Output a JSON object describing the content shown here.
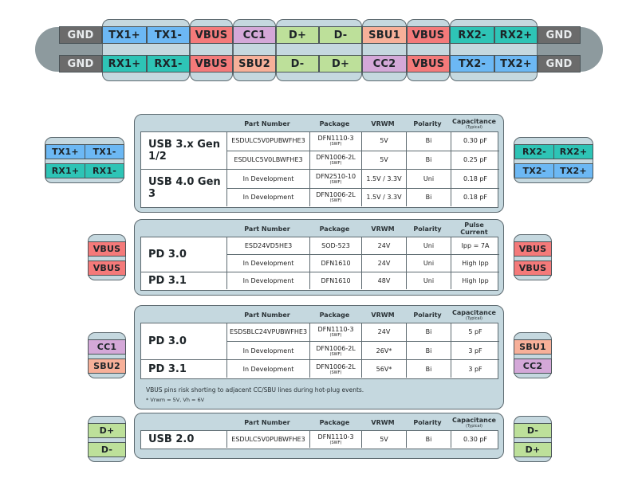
{
  "colors": {
    "gnd": "#6b6b6b",
    "tx": "#6cb8f4",
    "rx": "#2ec4b6",
    "vbus": "#f47a7a",
    "cc": "#d4a8d8",
    "sbu": "#f7b099",
    "d": "#bde09a",
    "group_bg": "#c5d8df",
    "cap": "#8d9a9e"
  },
  "connector": {
    "top_row": [
      "GND",
      "TX1+",
      "TX1-",
      "VBUS",
      "CC1",
      "D+",
      "D-",
      "SBU1",
      "VBUS",
      "RX2-",
      "RX2+",
      "GND"
    ],
    "bottom_row": [
      "GND",
      "RX1+",
      "RX1-",
      "VBUS",
      "SBU2",
      "D-",
      "D+",
      "CC2",
      "VBUS",
      "TX2-",
      "TX2+",
      "GND"
    ]
  },
  "side_badges": {
    "superspeed_left": {
      "top": [
        "TX1+",
        "TX1-"
      ],
      "bottom": [
        "RX1+",
        "RX1-"
      ]
    },
    "superspeed_right": {
      "top": [
        "RX2-",
        "RX2+"
      ],
      "bottom": [
        "TX2-",
        "TX2+"
      ]
    },
    "vbus_left": [
      "VBUS",
      "VBUS"
    ],
    "vbus_right": [
      "VBUS",
      "VBUS"
    ],
    "cc_left": [
      "CC1",
      "SBU2"
    ],
    "cc_right": [
      "SBU1",
      "CC2"
    ],
    "d_left": [
      "D+",
      "D-"
    ],
    "d_right": [
      "D-",
      "D+"
    ]
  },
  "tables": {
    "superspeed": {
      "headers": {
        "part": "Part Number",
        "package": "Package",
        "vrwm": "VRWM",
        "polarity": "Polarity",
        "last": "Capacitance",
        "last_sub": "(Typical)"
      },
      "groups": [
        {
          "label": "USB 3.x Gen 1/2",
          "rows": [
            {
              "part": "ESDULC5V0PUBWFHE3",
              "package": "DFN1110-3",
              "package_sub": "(SWF)",
              "vrwm": "5V",
              "polarity": "Bi",
              "value": "0.30 pF"
            },
            {
              "part": "ESDULC5V0LBWFHE3",
              "package": "DFN1006-2L",
              "package_sub": "(SWF)",
              "vrwm": "5V",
              "polarity": "Bi",
              "value": "0.25 pF"
            }
          ]
        },
        {
          "label": "USB 4.0 Gen 3",
          "rows": [
            {
              "part": "In Development",
              "package": "DFN2510-10",
              "package_sub": "(SWF)",
              "vrwm": "1.5V / 3.3V",
              "polarity": "Uni",
              "value": "0.18 pF"
            },
            {
              "part": "In Development",
              "package": "DFN1006-2L",
              "package_sub": "(SWF)",
              "vrwm": "1.5V / 3.3V",
              "polarity": "Bi",
              "value": "0.18 pF"
            }
          ]
        }
      ]
    },
    "vbus": {
      "headers": {
        "part": "Part Number",
        "package": "Package",
        "vrwm": "VRWM",
        "polarity": "Polarity",
        "last": "Pulse Current"
      },
      "groups": [
        {
          "label": "PD 3.0",
          "rows": [
            {
              "part": "ESD24VD5HE3",
              "package": "SOD-523",
              "vrwm": "24V",
              "polarity": "Uni",
              "value": "Ipp = 7A"
            },
            {
              "part": "In Development",
              "package": "DFN1610",
              "vrwm": "24V",
              "polarity": "Uni",
              "value": "High Ipp"
            }
          ]
        },
        {
          "label": "PD 3.1",
          "rows": [
            {
              "part": "In Development",
              "package": "DFN1610",
              "vrwm": "48V",
              "polarity": "Uni",
              "value": "High Ipp"
            }
          ]
        }
      ]
    },
    "cc_sbu": {
      "headers": {
        "part": "Part Number",
        "package": "Package",
        "vrwm": "VRWM",
        "polarity": "Polarity",
        "last": "Capacitance",
        "last_sub": "(Typical)"
      },
      "groups": [
        {
          "label": "PD 3.0",
          "rows": [
            {
              "part": "ESDSBLC24VPUBWFHE3",
              "package": "DFN1110-3",
              "package_sub": "(SWF)",
              "vrwm": "24V",
              "polarity": "Bi",
              "value": "5 pF"
            },
            {
              "part": "In Development",
              "package": "DFN1006-2L",
              "package_sub": "(SWF)",
              "vrwm": "26V*",
              "polarity": "Bi",
              "value": "3 pF"
            }
          ]
        },
        {
          "label": "PD 3.1",
          "rows": [
            {
              "part": "In Development",
              "package": "DFN1006-2L",
              "package_sub": "(SWF)",
              "vrwm": "56V*",
              "polarity": "Bi",
              "value": "3 pF"
            }
          ]
        }
      ],
      "note": "VBUS pins risk shorting to adjacent CC/SBU lines during hot-plug events.",
      "footnote": "* Vrwm = 5V, Vh = 6V"
    },
    "usb2": {
      "headers": {
        "part": "Part Number",
        "package": "Package",
        "vrwm": "VRWM",
        "polarity": "Polarity",
        "last": "Capacitance",
        "last_sub": "(Typical)"
      },
      "groups": [
        {
          "label": "USB 2.0",
          "rows": [
            {
              "part": "ESDULC5V0PUBWFHE3",
              "package": "DFN1110-3",
              "package_sub": "(SWF)",
              "vrwm": "5V",
              "polarity": "Bi",
              "value": "0.30 pF"
            }
          ]
        }
      ]
    }
  }
}
